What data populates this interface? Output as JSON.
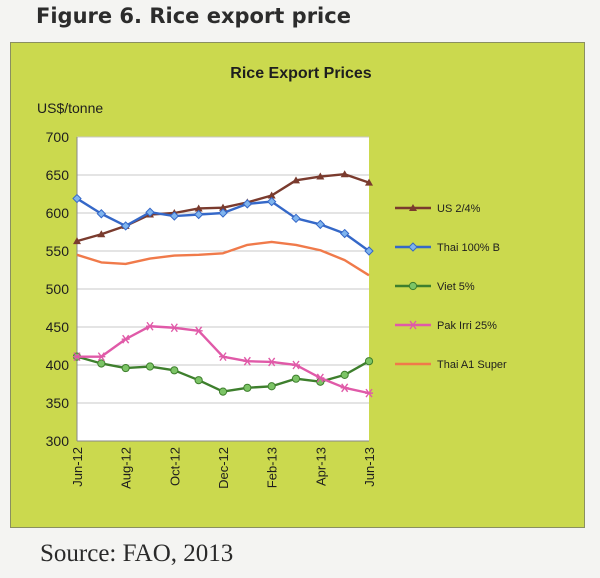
{
  "figure_title": "Figure 6. Rice export price",
  "source": "Source: FAO, 2013",
  "colors": {
    "panel_bg": "#cbd94e",
    "plot_bg": "#ffffff",
    "gridline": "#c8c8c8"
  },
  "chart_data": {
    "type": "line",
    "title": "Rice Export Prices",
    "ylabel": "US$/tonne",
    "xlabel": "",
    "ylim": [
      300,
      700
    ],
    "yticks": [
      300,
      350,
      400,
      450,
      500,
      550,
      600,
      650,
      700
    ],
    "grid": "horizontal",
    "legend_position": "right",
    "categories": [
      "Jun-12",
      "Jul-12",
      "Aug-12",
      "Sep-12",
      "Oct-12",
      "Nov-12",
      "Dec-12",
      "Jan-13",
      "Feb-13",
      "Mar-13",
      "Apr-13",
      "May-13",
      "Jun-13"
    ],
    "tick_labels": [
      "Jun-12",
      "Aug-12",
      "Oct-12",
      "Dec-12",
      "Feb-13",
      "Apr-13",
      "Jun-13"
    ],
    "series": [
      {
        "name": "US 2/4%",
        "color": "#7a3b2e",
        "marker": "triangle",
        "values": [
          563,
          572,
          583,
          598,
          600,
          606,
          607,
          614,
          623,
          643,
          648,
          651,
          640
        ]
      },
      {
        "name": "Thai 100% B",
        "color": "#3568c8",
        "marker": "diamond",
        "values": [
          619,
          599,
          583,
          601,
          596,
          598,
          600,
          612,
          615,
          593,
          585,
          573,
          550
        ]
      },
      {
        "name": "Viet 5%",
        "color": "#3e7f2d",
        "marker": "circle",
        "values": [
          411,
          402,
          396,
          398,
          393,
          380,
          365,
          370,
          372,
          382,
          378,
          387,
          405
        ]
      },
      {
        "name": "Pak Irri 25%",
        "color": "#e05aa8",
        "marker": "star",
        "values": [
          411,
          411,
          434,
          451,
          449,
          445,
          411,
          405,
          404,
          400,
          383,
          370,
          363
        ]
      },
      {
        "name": "Thai A1 Super",
        "color": "#f07a4a",
        "marker": "none",
        "values": [
          545,
          535,
          533,
          540,
          544,
          545,
          547,
          558,
          562,
          558,
          551,
          538,
          518
        ]
      }
    ]
  }
}
